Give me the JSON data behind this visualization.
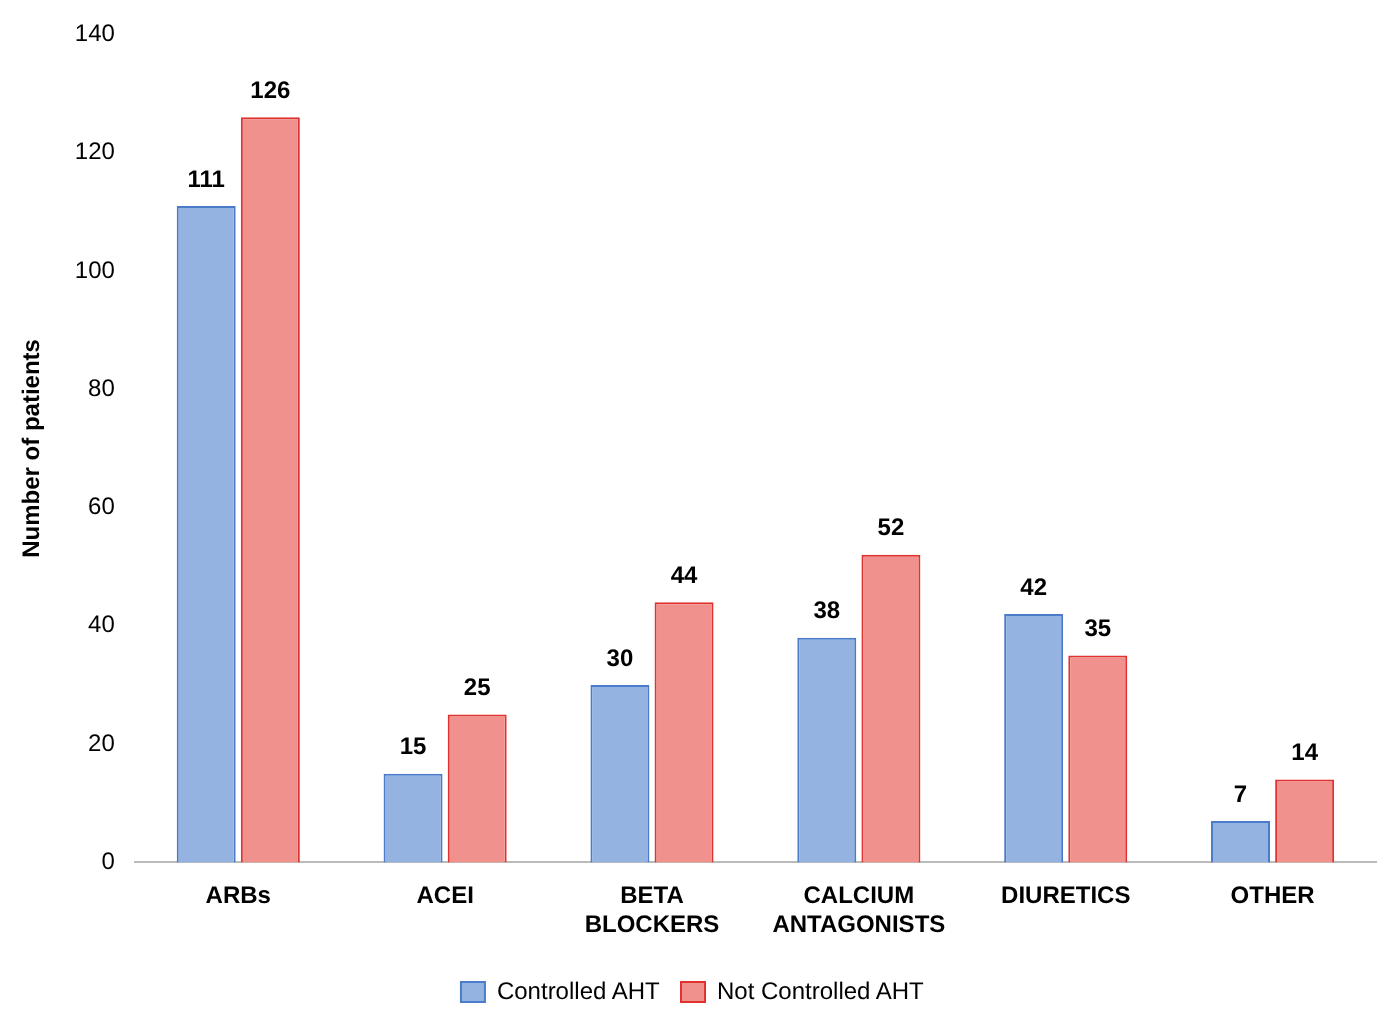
{
  "chart_data": {
    "type": "bar",
    "ylabel": "Number of patients",
    "categories": [
      "ARBs",
      "ACEI",
      "BETA BLOCKERS",
      "CALCIUM ANTAGONISTS",
      "DIURETICS",
      "OTHER"
    ],
    "series": [
      {
        "name": "Controlled AHT",
        "color": "#94b3e1",
        "values": [
          111,
          15,
          30,
          38,
          42,
          7
        ]
      },
      {
        "name": "Not Controlled AHT",
        "color": "#f0918d",
        "values": [
          126,
          25,
          44,
          52,
          35,
          14
        ]
      }
    ],
    "ylim": [
      0,
      140
    ],
    "yticks": [
      0,
      20,
      40,
      60,
      80,
      100,
      120,
      140
    ],
    "grid": false,
    "legend": "bottom",
    "data_labels": true
  }
}
